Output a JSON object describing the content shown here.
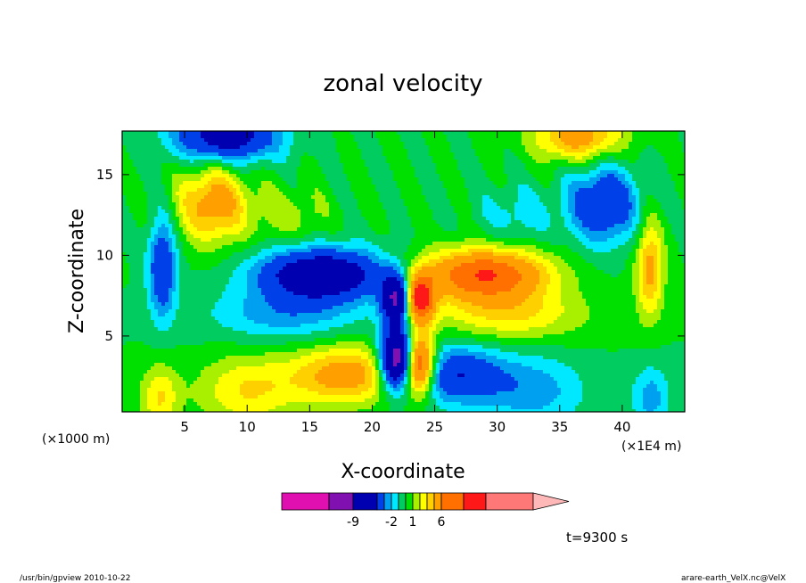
{
  "chart_data": {
    "type": "heatmap",
    "title": "zonal velocity",
    "xlabel": "X-coordinate",
    "ylabel": "Z-coordinate",
    "x_unit": "(×1E4 m)",
    "y_unit": "(×1000 m)",
    "xlim": [
      0,
      45
    ],
    "ylim": [
      0.3,
      17.7
    ],
    "x_ticks": [
      {
        "value": 5,
        "label": "5"
      },
      {
        "value": 10,
        "label": "10"
      },
      {
        "value": 15,
        "label": "15"
      },
      {
        "value": 20,
        "label": "20"
      },
      {
        "value": 25,
        "label": "25"
      },
      {
        "value": 30,
        "label": "30"
      },
      {
        "value": 35,
        "label": "35"
      },
      {
        "value": 40,
        "label": "40"
      }
    ],
    "y_ticks": [
      {
        "value": 5,
        "label": "5"
      },
      {
        "value": 10,
        "label": "10"
      },
      {
        "value": 15,
        "label": "15"
      }
    ],
    "colorbar": {
      "levels": [
        -16,
        -12,
        -9,
        -5,
        -3,
        -2,
        -1,
        0,
        1,
        2,
        3,
        4,
        6,
        8,
        12,
        16
      ],
      "labels": [
        {
          "value": -9,
          "label": "-9"
        },
        {
          "value": -2,
          "label": "-2"
        },
        {
          "value": 1,
          "label": "1"
        },
        {
          "value": 6,
          "label": "6"
        }
      ],
      "colors": [
        "#e010b0",
        "#8010b0",
        "#0000b0",
        "#0040e8",
        "#00a0f0",
        "#00e8ff",
        "#00cc60",
        "#00e000",
        "#a8f000",
        "#ffff00",
        "#ffd000",
        "#ffa000",
        "#ff7000",
        "#ff1818",
        "#ff7878"
      ],
      "extend_color": "#ffb8b8"
    },
    "features": [
      {
        "x": 22,
        "z": 3.6,
        "a": -12,
        "sx": 1.3,
        "sz": 1.8
      },
      {
        "x": 22,
        "z": 7.3,
        "a": -10,
        "sx": 1.2,
        "sz": 1.5
      },
      {
        "x": 23.7,
        "z": 7.3,
        "a": 10,
        "sx": 1.2,
        "sz": 1.5
      },
      {
        "x": 23.7,
        "z": 3.2,
        "a": 10,
        "sx": 1.3,
        "sz": 1.8
      },
      {
        "x": 16,
        "z": 8.8,
        "a": -8,
        "sx": 5,
        "sz": 1.6
      },
      {
        "x": 29,
        "z": 8.8,
        "a": 8,
        "sx": 5,
        "sz": 1.6
      },
      {
        "x": 18,
        "z": 2.6,
        "a": 5,
        "sx": 4.5,
        "sz": 1.8
      },
      {
        "x": 26.5,
        "z": 2.6,
        "a": -5,
        "sx": 4,
        "sz": 1.8
      },
      {
        "x": 13,
        "z": 6.3,
        "a": -2.5,
        "sx": 6,
        "sz": 1.6
      },
      {
        "x": 31,
        "z": 6.3,
        "a": 3,
        "sx": 6,
        "sz": 1.6
      },
      {
        "x": 33,
        "z": 1.6,
        "a": -2.5,
        "sx": 4,
        "sz": 2.2
      },
      {
        "x": 10,
        "z": 1.6,
        "a": 3,
        "sx": 4,
        "sz": 2.2
      },
      {
        "x": 3.2,
        "z": 9.2,
        "a": -5,
        "sx": 1.1,
        "sz": 3
      },
      {
        "x": 42.2,
        "z": 9.2,
        "a": 4.5,
        "sx": 1.1,
        "sz": 3
      },
      {
        "x": 3,
        "z": 1.2,
        "a": 3,
        "sx": 1.5,
        "sz": 2
      },
      {
        "x": 42.3,
        "z": 1.2,
        "a": -2.5,
        "sx": 1.5,
        "sz": 2
      },
      {
        "x": 7.3,
        "z": 13.2,
        "a": 5,
        "sx": 2.8,
        "sz": 2.4
      },
      {
        "x": 38.5,
        "z": 13.2,
        "a": -5,
        "sx": 2.8,
        "sz": 2.4
      },
      {
        "x": 8.3,
        "z": 17.4,
        "a": -7,
        "sx": 4,
        "sz": 1.6
      },
      {
        "x": 36.5,
        "z": 17.4,
        "a": 5,
        "sx": 3.5,
        "sz": 1.6
      },
      {
        "x": 13.5,
        "z": 12.5,
        "a": 1.5,
        "sx": 3,
        "sz": 1.8
      },
      {
        "x": 31.5,
        "z": 12.5,
        "a": -1.5,
        "sx": 3,
        "sz": 1.8
      }
    ]
  },
  "time_label": "t=9300 s",
  "footer": {
    "left": "/usr/bin/gpview  2010-10-22",
    "right": "arare-earth_VelX.nc@VelX"
  }
}
